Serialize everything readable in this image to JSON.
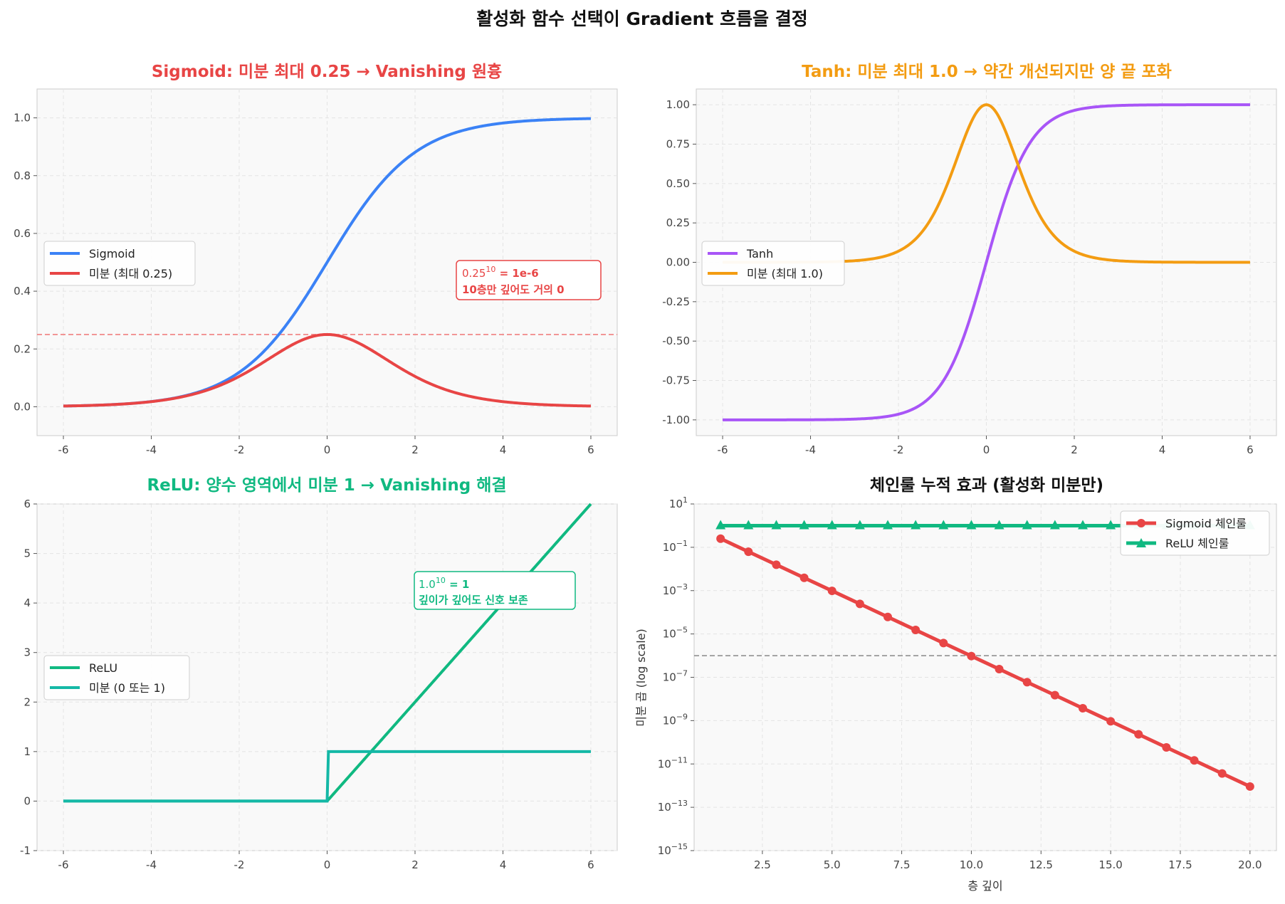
{
  "suptitle": "활성화 함수 선택이 Gradient 흐름을 결정",
  "panels": {
    "sigmoid": {
      "title": "Sigmoid: 미분 최대 0.25 → Vanishing 원흉",
      "title_color": "#e84545",
      "legend": [
        "Sigmoid",
        "미분 (최대 0.25)"
      ],
      "annotation": {
        "base": "0.25",
        "exp": "10",
        "rest": " = 1e-6",
        "line2": "10층만 깊어도 거의 0",
        "x": 3.0,
        "y": 0.44
      },
      "hline": 0.25
    },
    "tanh": {
      "title": "Tanh: 미분 최대 1.0 → 약간 개선되지만 양 끝 포화",
      "title_color": "#f39c12",
      "legend": [
        "Tanh",
        "미분 (최대 1.0)"
      ]
    },
    "relu": {
      "title": "ReLU: 양수 영역에서 미분 1 → Vanishing 해결",
      "title_color": "#10b981",
      "legend": [
        "ReLU",
        "미분 (0 또는 1)"
      ],
      "annotation": {
        "base": "1.0",
        "exp": "10",
        "rest": " = 1",
        "line2": "깊이가 깊어도 신호 보존",
        "x": 2.0,
        "y": 4.4
      }
    },
    "chain": {
      "title": "체인룰 누적 효과 (활성화 미분만)",
      "title_color": "#111111",
      "xlabel": "층 깊이",
      "ylabel": "미분 곱 (log scale)",
      "legend": [
        "Sigmoid 체인룰",
        "ReLU 체인룰"
      ],
      "hline": 1e-06
    }
  },
  "colors": {
    "sigmoid": "#3b82f6",
    "sigmoid_deriv": "#e84545",
    "tanh": "#a855f7",
    "tanh_deriv": "#f39c12",
    "relu": "#10b981",
    "relu_deriv": "#14b8a6",
    "chain_sigmoid": "#e84545",
    "chain_relu": "#10b981"
  },
  "chart_data": [
    {
      "type": "line",
      "title": "Sigmoid: 미분 최대 0.25 → Vanishing 원흉",
      "x_range": [
        -6,
        6
      ],
      "xlim": [
        -6.6,
        6.6
      ],
      "ylim": [
        -0.1,
        1.1
      ],
      "xticks": [
        -6,
        -4,
        -2,
        0,
        2,
        4,
        6
      ],
      "yticks": [
        0.0,
        0.2,
        0.4,
        0.6,
        0.8,
        1.0
      ],
      "ytick_labels": [
        "0.0",
        "0.2",
        "0.4",
        "0.6",
        "0.8",
        "1.0"
      ],
      "series": [
        {
          "name": "Sigmoid",
          "function": "sigmoid"
        },
        {
          "name": "미분 (최대 0.25)",
          "function": "sigmoid_derivative"
        }
      ],
      "grid": true,
      "legend": "center-left"
    },
    {
      "type": "line",
      "title": "Tanh: 미분 최대 1.0 → 약간 개선되지만 양 끝 포화",
      "x_range": [
        -6,
        6
      ],
      "xlim": [
        -6.6,
        6.6
      ],
      "ylim": [
        -1.1,
        1.1
      ],
      "xticks": [
        -6,
        -4,
        -2,
        0,
        2,
        4,
        6
      ],
      "yticks": [
        -1.0,
        -0.75,
        -0.5,
        -0.25,
        0.0,
        0.25,
        0.5,
        0.75,
        1.0
      ],
      "ytick_labels": [
        "-1.00",
        "-0.75",
        "-0.50",
        "-0.25",
        "0.00",
        "0.25",
        "0.50",
        "0.75",
        "1.00"
      ],
      "series": [
        {
          "name": "Tanh",
          "function": "tanh"
        },
        {
          "name": "미분 (최대 1.0)",
          "function": "tanh_derivative"
        }
      ],
      "grid": true,
      "legend": "center-left"
    },
    {
      "type": "line",
      "title": "ReLU: 양수 영역에서 미분 1 → Vanishing 해결",
      "x_range": [
        -6,
        6
      ],
      "xlim": [
        -6.6,
        6.6
      ],
      "ylim": [
        -1,
        6
      ],
      "xticks": [
        -6,
        -4,
        -2,
        0,
        2,
        4,
        6
      ],
      "yticks": [
        -1,
        0,
        1,
        2,
        3,
        4,
        5,
        6
      ],
      "ytick_labels": [
        "-1",
        "0",
        "1",
        "2",
        "3",
        "4",
        "5",
        "6"
      ],
      "series": [
        {
          "name": "ReLU",
          "function": "relu"
        },
        {
          "name": "미분 (0 또는 1)",
          "function": "relu_derivative"
        }
      ],
      "grid": true,
      "legend": "center-left"
    },
    {
      "type": "line",
      "title": "체인룰 누적 효과 (활성화 미분만)",
      "xlabel": "층 깊이",
      "ylabel": "미분 곱 (log scale)",
      "yscale": "log",
      "xlim": [
        0.05,
        20.95
      ],
      "ylim_exp": [
        -15,
        1
      ],
      "xticks": [
        2.5,
        5.0,
        7.5,
        10.0,
        12.5,
        15.0,
        17.5,
        20.0
      ],
      "xtick_labels": [
        "2.5",
        "5.0",
        "7.5",
        "10.0",
        "12.5",
        "15.0",
        "17.5",
        "20.0"
      ],
      "yticks_exp": [
        1,
        -1,
        -3,
        -5,
        -7,
        -9,
        -11,
        -13,
        -15
      ],
      "x": [
        1,
        2,
        3,
        4,
        5,
        6,
        7,
        8,
        9,
        10,
        11,
        12,
        13,
        14,
        15,
        16,
        17,
        18,
        19,
        20
      ],
      "series": [
        {
          "name": "Sigmoid 체인룰",
          "base": 0.25,
          "y": "0.25^n",
          "marker": "circle"
        },
        {
          "name": "ReLU 체인룰",
          "base": 1.0,
          "y": "1.0^n",
          "marker": "triangle"
        }
      ],
      "grid": true,
      "legend": "top-right"
    }
  ]
}
